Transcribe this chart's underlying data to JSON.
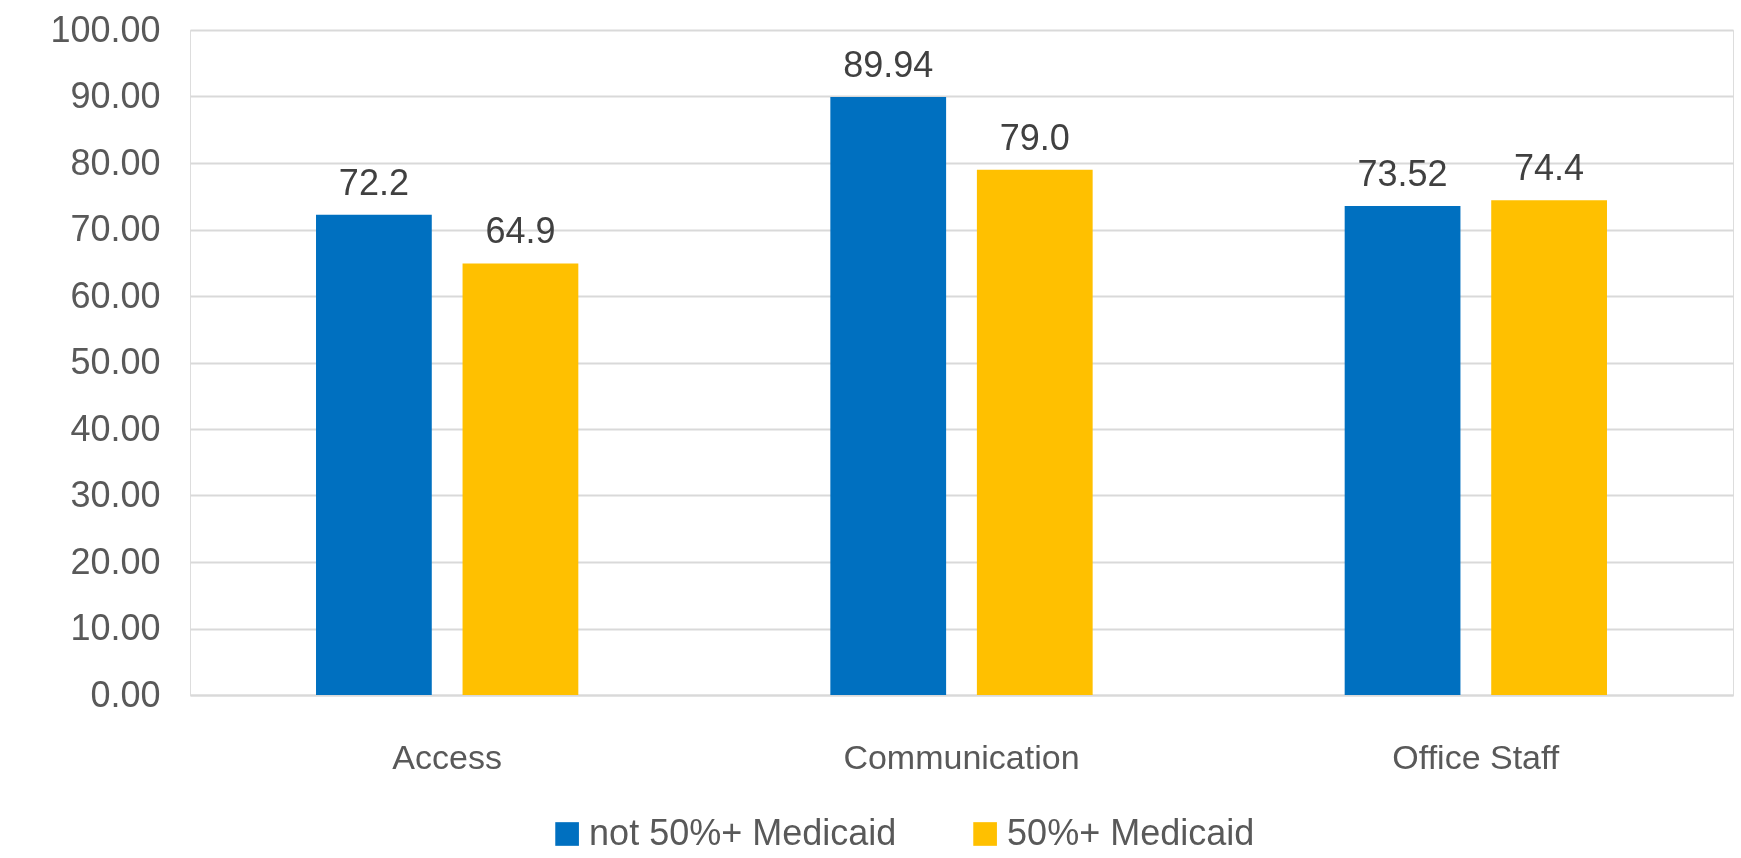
{
  "chart_data": {
    "type": "bar",
    "categories": [
      "Access",
      "Communication",
      "Office Staff"
    ],
    "series": [
      {
        "name": "not 50%+ Medicaid",
        "color": "#0070c0",
        "values": [
          72.2,
          89.94,
          73.52
        ],
        "value_labels": [
          "72.2",
          "89.94",
          "73.52"
        ]
      },
      {
        "name": "50%+ Medicaid",
        "color": "#ffc000",
        "values": [
          64.9,
          79.0,
          74.4
        ],
        "value_labels": [
          "64.9",
          "79.0",
          "74.4"
        ]
      }
    ],
    "ylim": [
      0,
      100
    ],
    "yticks": [
      {
        "value": 0,
        "label": "0.00"
      },
      {
        "value": 10,
        "label": "10.00"
      },
      {
        "value": 20,
        "label": "20.00"
      },
      {
        "value": 30,
        "label": "30.00"
      },
      {
        "value": 40,
        "label": "40.00"
      },
      {
        "value": 50,
        "label": "50.00"
      },
      {
        "value": 60,
        "label": "60.00"
      },
      {
        "value": 70,
        "label": "70.00"
      },
      {
        "value": 80,
        "label": "80.00"
      },
      {
        "value": 90,
        "label": "90.00"
      },
      {
        "value": 100,
        "label": "100.00"
      }
    ],
    "grid": "y",
    "legend": "bottom"
  }
}
